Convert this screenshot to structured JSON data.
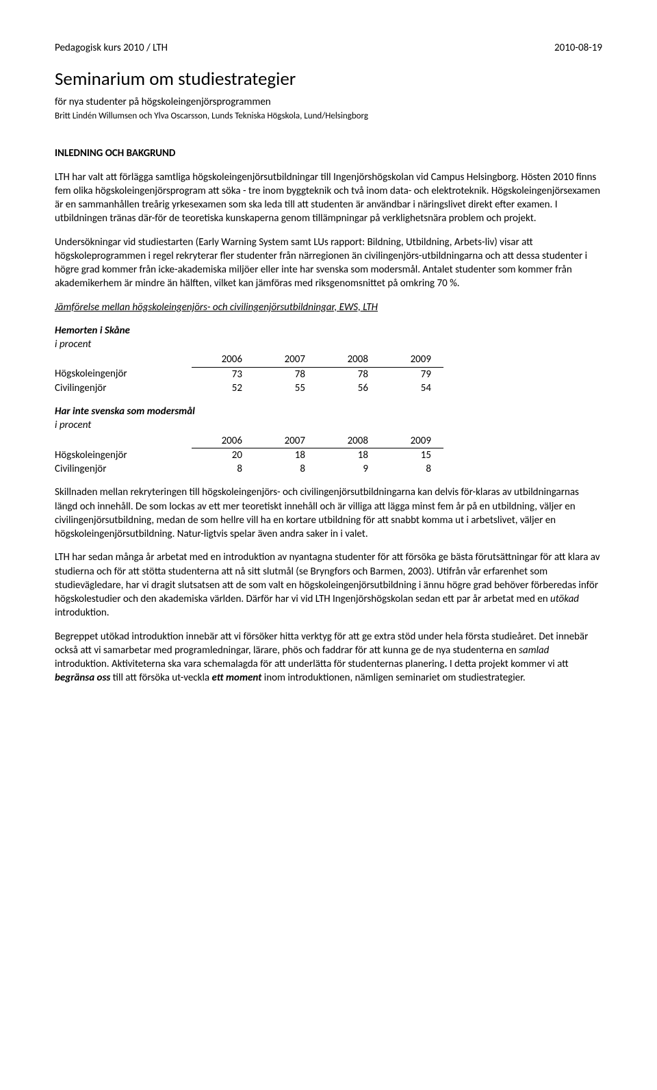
{
  "header": {
    "left": "Pedagogisk kurs 2010 / LTH",
    "right": "2010-08-19"
  },
  "title": "Seminarium om studiestrategier",
  "subtitle": "för nya studenter på högskoleingenjörsprogrammen",
  "authors": "Britt Lindén Willumsen och Ylva Oscarsson, Lunds Tekniska Högskola, Lund/Helsingborg",
  "sectionHeading": "INLEDNING OCH BAKGRUND",
  "para1": "LTH har valt att förlägga samtliga högskoleingenjörsutbildningar till Ingenjörshögskolan vid Campus Helsingborg. Hösten 2010 finns fem olika högskoleingenjörsprogram att söka - tre inom byggteknik och två inom data- och elektroteknik. Högskoleingenjörsexamen är en sammanhållen treårig yrkesexamen som ska leda till att studenten är användbar i näringslivet direkt efter examen. I utbildningen tränas där-för de teoretiska kunskaperna genom tillämpningar på verklighetsnära problem och projekt.",
  "para2": "Undersökningar vid studiestarten (Early Warning System samt LUs rapport: Bildning, Utbildning, Arbets-liv) visar att högskoleprogrammen i regel rekryterar fler studenter från närregionen än civilingenjörs-utbildningarna och att dessa studenter i högre grad kommer från icke-akademiska miljöer eller inte har svenska som modersmål. Antalet studenter som kommer från akademikerhem är mindre än hälften, vilket kan jämföras med riksgenomsnittet på omkring 70 %.",
  "compareHeading": "Jämförelse mellan högskoleingenjörs- och civilingenjörsutbildningar, EWS, LTH",
  "table1": {
    "title": "Hemorten i Skåne",
    "sub": "i procent",
    "years": [
      "2006",
      "2007",
      "2008",
      "2009"
    ],
    "rows": [
      {
        "label": "Högskoleingenjör",
        "values": [
          "73",
          "78",
          "78",
          "79"
        ]
      },
      {
        "label": "Civilingenjör",
        "values": [
          "52",
          "55",
          "56",
          "54"
        ]
      }
    ]
  },
  "table2": {
    "title": "Har inte svenska som modersmål",
    "sub": "i procent",
    "years": [
      "2006",
      "2007",
      "2008",
      "2009"
    ],
    "rows": [
      {
        "label": "Högskoleingenjör",
        "values": [
          "20",
          "18",
          "18",
          "15"
        ]
      },
      {
        "label": "Civilingenjör",
        "values": [
          "8",
          "8",
          "9",
          "8"
        ]
      }
    ]
  },
  "para3": "Skillnaden mellan rekryteringen till högskoleingenjörs- och civilingenjörsutbildningarna kan delvis för-klaras av utbildningarnas längd och innehåll. De som lockas av ett mer teoretiskt innehåll och är villiga att lägga minst fem år på en utbildning, väljer en civilingenjörsutbildning, medan de som hellre vill ha en kortare utbildning för att snabbt komma ut i arbetslivet, väljer en högskoleingenjörsutbildning. Natur-ligtvis spelar även andra saker in i valet.",
  "para4a": "LTH har sedan många år arbetat med en introduktion av nyantagna studenter för att försöka ge bästa förutsättningar för att klara av studierna och för att stötta studenterna att nå sitt slutmål (se Bryngfors och Barmen, 2003). Utifrån vår erfarenhet som studievägledare, har vi dragit slutsatsen att de som valt en högskoleingenjörsutbildning i ännu högre grad behöver förberedas inför högskolestudier och den akademiska världen. Därför har vi vid LTH Ingenjörshögskolan sedan ett par år arbetat med en ",
  "para4b": "utökad",
  "para4c": " introduktion.",
  "para5a": "Begreppet utökad introduktion innebär att vi försöker hitta verktyg för att ge extra stöd under hela första studieåret. Det innebär också att vi samarbetar med programledningar, lärare, phös och faddrar för att kunna ge de nya studenterna en ",
  "para5b": "samlad",
  "para5c": " introduktion. Aktiviteterna ska vara schemalagda för att underlätta för studenternas planering",
  "para5d": ".",
  "para5e": " I detta projekt kommer vi att ",
  "para5f": "begränsa oss",
  "para5g": " till att försöka ut-veckla ",
  "para5h": "ett moment",
  "para5i": " inom introduktionen, nämligen seminariet om studiestrategier."
}
